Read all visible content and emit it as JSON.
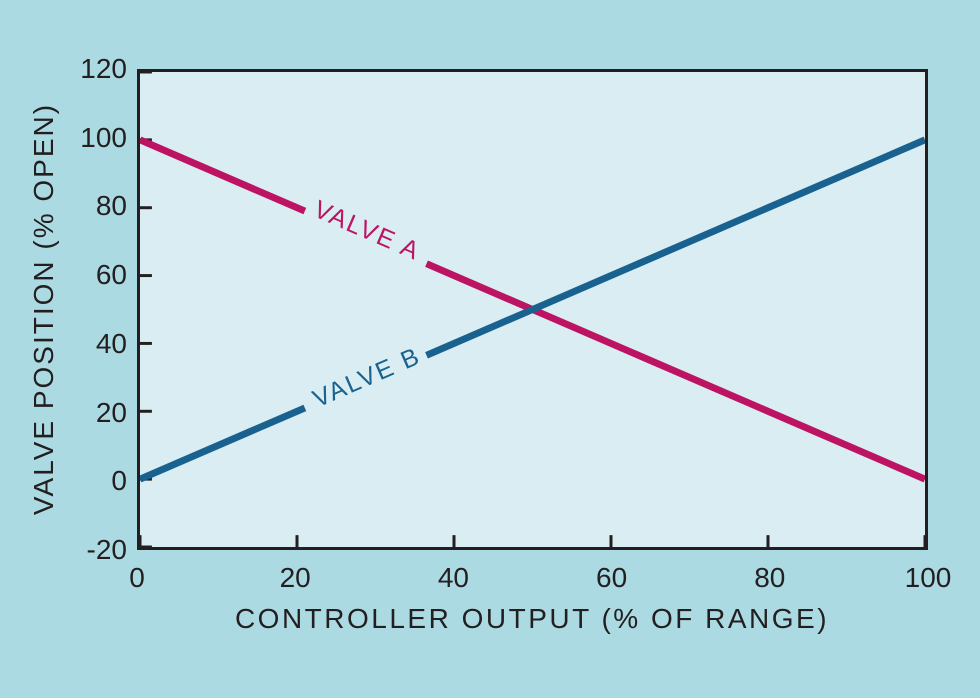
{
  "figure": {
    "background_color": "#abdae3",
    "plot_background_color": "#d9edf2",
    "axis_color": "#231f20",
    "text_color": "#231f20"
  },
  "chart_data": {
    "type": "line",
    "title": "",
    "xlabel": "CONTROLLER OUTPUT (% OF RANGE)",
    "ylabel": "VALVE POSITION (% OPEN)",
    "xlim": [
      0,
      100
    ],
    "ylim": [
      -20,
      120
    ],
    "x_ticks": [
      0,
      20,
      40,
      60,
      80,
      100
    ],
    "y_ticks": [
      120,
      100,
      80,
      60,
      40,
      20,
      0,
      -20
    ],
    "grid": false,
    "legend_position": "inline-labels-on-lines",
    "series": [
      {
        "name": "VALVE A",
        "color": "#bd1363",
        "x": [
          0,
          100
        ],
        "y": [
          100,
          0
        ],
        "label_gap_x": [
          21,
          36.5
        ]
      },
      {
        "name": "VALVE B",
        "color": "#19618f",
        "x": [
          0,
          100
        ],
        "y": [
          0,
          100
        ],
        "label_gap_x": [
          21,
          36.5
        ]
      }
    ]
  }
}
